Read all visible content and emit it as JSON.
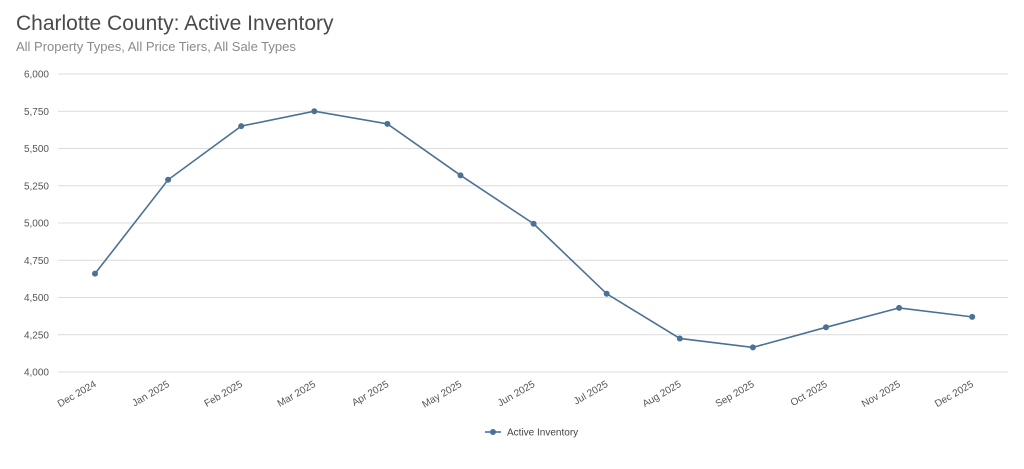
{
  "header": {
    "title": "Charlotte County: Active Inventory",
    "subtitle": "All Property Types, All Price Tiers, All Sale Types"
  },
  "chart_data": {
    "type": "line",
    "title": "Charlotte County: Active Inventory",
    "subtitle": "All Property Types, All Price Tiers, All Sale Types",
    "xlabel": "",
    "ylabel": "",
    "ylim": [
      4000,
      6000
    ],
    "yticks": [
      4000,
      4250,
      4500,
      4750,
      5000,
      5250,
      5500,
      5750,
      6000
    ],
    "ytick_labels": [
      "4,000",
      "4,250",
      "4,500",
      "4,750",
      "5,000",
      "5,250",
      "5,500",
      "5,750",
      "6,000"
    ],
    "categories": [
      "Dec 2024",
      "Jan 2025",
      "Feb 2025",
      "Mar 2025",
      "Apr 2025",
      "May 2025",
      "Jun 2025",
      "Jul 2025",
      "Aug 2025",
      "Sep 2025",
      "Oct 2025",
      "Nov 2025",
      "Dec 2025"
    ],
    "series": [
      {
        "name": "Active Inventory",
        "color": "#4a7196",
        "values": [
          4660,
          5290,
          5650,
          5750,
          5665,
          5320,
          4995,
          4525,
          4225,
          4165,
          4300,
          4430,
          4370
        ]
      }
    ],
    "grid": true,
    "legend": "bottom-center"
  }
}
